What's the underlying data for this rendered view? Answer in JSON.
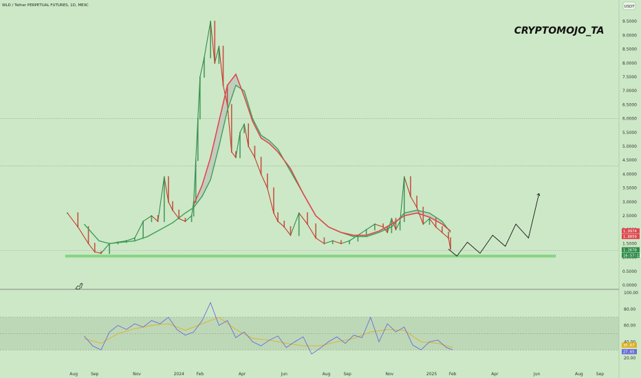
{
  "header": {
    "symbol_title": "WLD / Tether PERPETUAL FUTURES, 1D, MEXC",
    "currency_button": "USDT"
  },
  "watermark": "CRYPTOMOJO_TA",
  "colors": {
    "background": "#cde8c6",
    "candle_up": "#2e8b4a",
    "candle_down": "#c0392b",
    "ema_fast": "#3aa055",
    "ema_slow": "#e0454f",
    "ribbon_fill": "#b8b8b8",
    "support_zone": "#7fd47f",
    "rsi": "#6b6bd6",
    "rsi_ma": "#e0b020",
    "rsi_band": "#b7d3b2"
  },
  "chart_data": [
    {
      "type": "line",
      "title": "WLD / Tether PERPETUAL FUTURES, 1D, MEXC",
      "scale": "log",
      "ylim": [
        0,
        10
      ],
      "y_ticks": [
        "9.5000",
        "9.0000",
        "8.5000",
        "8.0000",
        "7.5000",
        "7.0000",
        "6.5000",
        "6.0000",
        "5.5000",
        "5.0000",
        "4.5000",
        "4.0000",
        "3.5000",
        "3.0000",
        "2.5000",
        "2.0000",
        "1.5000",
        "1.0000",
        "0.5000",
        "0.0000"
      ],
      "x_ticks": [
        "Aug",
        "Sep",
        "Nov",
        "2024",
        "Feb",
        "Apr",
        "Jun",
        "Aug",
        "Sep",
        "Nov",
        "2025",
        "Feb",
        "Apr",
        "Jun",
        "Aug",
        "Sep"
      ],
      "x_tick_t": [
        0.3,
        1.3,
        3.3,
        5.3,
        6.3,
        8.3,
        10.3,
        12.3,
        13.3,
        15.3,
        17.3,
        18.3,
        20.3,
        22.3,
        24.3,
        25.3
      ],
      "horizontal_levels": [
        6.0,
        4.3,
        1.25
      ],
      "support_zone": 1.05,
      "price": {
        "t": [
          0,
          0.5,
          1.0,
          1.3,
          1.6,
          2.0,
          2.4,
          2.8,
          3.2,
          3.6,
          4.0,
          4.3,
          4.6,
          4.8,
          5.0,
          5.3,
          5.6,
          5.9,
          6.0,
          6.1,
          6.2,
          6.3,
          6.5,
          6.8,
          7.0,
          7.2,
          7.4,
          7.6,
          7.8,
          8.0,
          8.2,
          8.4,
          8.6,
          8.9,
          9.2,
          9.5,
          9.8,
          10.0,
          10.3,
          10.6,
          11.0,
          11.4,
          11.8,
          12.2,
          12.6,
          13.0,
          13.4,
          13.8,
          14.2,
          14.6,
          15.0,
          15.2,
          15.4,
          15.6,
          15.8,
          16.0,
          16.3,
          16.6,
          16.9,
          17.2,
          17.5,
          17.8,
          18.1,
          18.2
        ],
        "close": [
          2.6,
          2.1,
          1.5,
          1.2,
          1.15,
          1.5,
          1.55,
          1.6,
          1.7,
          2.3,
          2.5,
          2.3,
          3.9,
          3.0,
          2.7,
          2.4,
          2.3,
          2.5,
          3.0,
          4.5,
          6.0,
          7.5,
          8.2,
          9.5,
          8.0,
          8.6,
          7.2,
          6.5,
          4.8,
          4.6,
          5.5,
          5.8,
          5.0,
          4.6,
          4.0,
          3.5,
          2.6,
          2.3,
          2.1,
          1.8,
          2.6,
          2.2,
          1.7,
          1.5,
          1.6,
          1.5,
          1.6,
          1.8,
          2.0,
          2.2,
          2.1,
          1.9,
          2.4,
          2.0,
          2.3,
          3.9,
          3.2,
          2.8,
          2.2,
          2.4,
          2.1,
          1.9,
          1.7,
          1.3
        ]
      },
      "series": [
        {
          "name": "",
          "t": [
            0.8,
            1.5,
            2.0,
            2.6,
            3.2,
            3.8,
            4.4,
            5.0,
            5.6,
            6.0,
            6.4,
            6.8,
            7.2,
            7.6,
            8.0,
            8.4,
            8.8,
            9.2,
            9.6,
            10.0,
            10.6,
            11.2,
            11.8,
            12.4,
            13.0,
            13.6,
            14.2,
            14.8,
            15.4,
            16.0,
            16.6,
            17.2,
            17.8,
            18.2
          ],
          "values": [
            2.2,
            1.6,
            1.5,
            1.55,
            1.6,
            1.75,
            2.0,
            2.25,
            2.6,
            2.8,
            3.2,
            3.8,
            5.0,
            6.3,
            7.2,
            7.0,
            6.0,
            5.4,
            5.2,
            4.9,
            4.1,
            3.3,
            2.5,
            2.1,
            1.9,
            1.75,
            1.75,
            1.9,
            2.1,
            2.6,
            2.7,
            2.6,
            2.3,
            1.9
          ]
        },
        {
          "name": "",
          "t": [
            6.0,
            6.4,
            6.8,
            7.2,
            7.6,
            8.0,
            8.4,
            8.8,
            9.2,
            9.6,
            10.0,
            10.6,
            11.2,
            11.8,
            12.4,
            13.0,
            13.6,
            14.2,
            14.8,
            15.4,
            16.0,
            16.6,
            17.2,
            17.8,
            18.2
          ],
          "values": [
            2.9,
            3.6,
            4.6,
            5.9,
            7.2,
            7.6,
            6.8,
            5.9,
            5.3,
            5.1,
            4.8,
            4.2,
            3.3,
            2.5,
            2.1,
            1.9,
            1.8,
            1.8,
            1.95,
            2.2,
            2.5,
            2.6,
            2.45,
            2.2,
            1.95
          ]
        }
      ],
      "projection": {
        "t": [
          18.1,
          18.5,
          19.0,
          19.6,
          20.2,
          20.8,
          21.3,
          21.9,
          22.4
        ],
        "values": [
          1.3,
          1.05,
          1.55,
          1.15,
          1.8,
          1.4,
          2.2,
          1.7,
          3.3
        ]
      },
      "price_tags": [
        {
          "value": "1.9974",
          "color": "#e0454f",
          "y": 1.95
        },
        {
          "value": "1.8059",
          "color": "#e0454f",
          "y": 1.75
        },
        {
          "value": "1.2670",
          "color": "#2e8b4a",
          "y": 1.27
        },
        {
          "value": "16:57:13",
          "color": "#2e8b4a",
          "y": 1.07
        }
      ]
    },
    {
      "type": "line",
      "title": "",
      "ylim": [
        20,
        100
      ],
      "y_ticks": [
        "100.00",
        "80.00",
        "60.00",
        "40.00",
        "20.00"
      ],
      "band": [
        30,
        70
      ],
      "series": [
        {
          "name": "",
          "t": [
            0.8,
            1.2,
            1.6,
            2.0,
            2.4,
            2.8,
            3.2,
            3.6,
            4.0,
            4.4,
            4.8,
            5.2,
            5.6,
            6.0,
            6.4,
            6.8,
            7.2,
            7.6,
            8.0,
            8.4,
            8.8,
            9.2,
            9.6,
            10.0,
            10.4,
            10.8,
            11.2,
            11.6,
            12.0,
            12.4,
            12.8,
            13.2,
            13.6,
            14.0,
            14.4,
            14.8,
            15.2,
            15.6,
            16.0,
            16.4,
            16.8,
            17.2,
            17.6,
            18.0,
            18.3
          ],
          "values": [
            47,
            35,
            30,
            52,
            60,
            55,
            62,
            58,
            66,
            62,
            70,
            55,
            48,
            52,
            66,
            88,
            60,
            66,
            45,
            52,
            40,
            35,
            42,
            47,
            33,
            40,
            46,
            25,
            32,
            40,
            46,
            38,
            48,
            45,
            70,
            40,
            62,
            52,
            58,
            36,
            30,
            40,
            42,
            33,
            30
          ]
        },
        {
          "name": "",
          "t": [
            0.8,
            1.6,
            2.4,
            3.2,
            4.0,
            4.8,
            5.6,
            6.4,
            7.2,
            8.0,
            8.8,
            9.6,
            10.4,
            11.2,
            12.0,
            12.8,
            13.6,
            14.4,
            15.2,
            16.0,
            16.8,
            17.6,
            18.3
          ],
          "values": [
            44,
            38,
            50,
            56,
            60,
            62,
            54,
            62,
            70,
            55,
            44,
            42,
            38,
            35,
            35,
            40,
            44,
            52,
            55,
            54,
            40,
            38,
            33
          ]
        }
      ],
      "last_values": [
        {
          "value": "35.67",
          "color": "#e0b020"
        },
        {
          "value": "27.65",
          "color": "#6b6bd6"
        }
      ]
    }
  ]
}
